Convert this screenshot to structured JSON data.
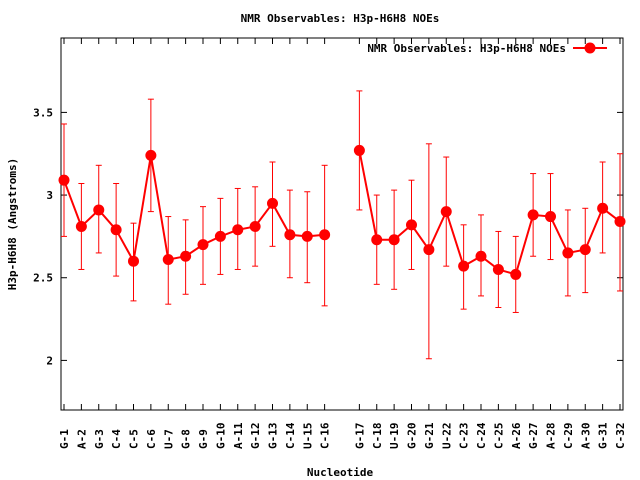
{
  "chart_data": {
    "type": "line",
    "title": "NMR Observables: H3p-H6H8 NOEs",
    "xlabel": "Nucleotide",
    "ylabel": "H3p-H6H8 (Angstroms)",
    "ylim": [
      1.7,
      3.95
    ],
    "yticks": [
      "2",
      "2.5",
      "3",
      "3.5"
    ],
    "legend_position": "top-right",
    "line_color": "#ff0000",
    "series": [
      {
        "name": "NMR Observables: H3p-H6H8 NOEs",
        "segments": [
          {
            "categories": [
              "G-1",
              "A-2",
              "G-3",
              "C-4",
              "C-5",
              "C-6",
              "U-7",
              "G-8",
              "G-9",
              "G-10",
              "A-11",
              "G-12",
              "G-13",
              "C-14",
              "U-15",
              "C-16"
            ],
            "values": [
              3.09,
              2.81,
              2.91,
              2.79,
              2.6,
              3.24,
              2.61,
              2.63,
              2.7,
              2.75,
              2.79,
              2.81,
              2.95,
              2.76,
              2.75,
              2.76
            ],
            "err_low": [
              2.75,
              2.55,
              2.65,
              2.51,
              2.36,
              2.9,
              2.34,
              2.4,
              2.46,
              2.52,
              2.55,
              2.57,
              2.69,
              2.5,
              2.47,
              2.33
            ],
            "err_high": [
              3.43,
              3.07,
              3.18,
              3.07,
              2.83,
              3.58,
              2.87,
              2.85,
              2.93,
              2.98,
              3.04,
              3.05,
              3.2,
              3.03,
              3.02,
              3.18
            ]
          },
          {
            "categories": [
              "G-17",
              "C-18",
              "U-19",
              "G-20",
              "G-21",
              "U-22",
              "C-23",
              "C-24",
              "C-25",
              "A-26",
              "G-27",
              "A-28",
              "C-29",
              "A-30",
              "G-31",
              "C-32"
            ],
            "values": [
              3.27,
              2.73,
              2.73,
              2.82,
              2.67,
              2.9,
              2.57,
              2.63,
              2.55,
              2.52,
              2.88,
              2.87,
              2.65,
              2.67,
              2.92,
              2.84
            ],
            "err_low": [
              2.91,
              2.46,
              2.43,
              2.55,
              2.01,
              2.57,
              2.31,
              2.39,
              2.32,
              2.29,
              2.63,
              2.61,
              2.39,
              2.41,
              2.65,
              2.42
            ],
            "err_high": [
              3.63,
              3.0,
              3.03,
              3.09,
              3.31,
              3.23,
              2.82,
              2.88,
              2.78,
              2.75,
              3.13,
              3.13,
              2.91,
              2.92,
              3.2,
              3.25
            ]
          }
        ]
      }
    ]
  }
}
